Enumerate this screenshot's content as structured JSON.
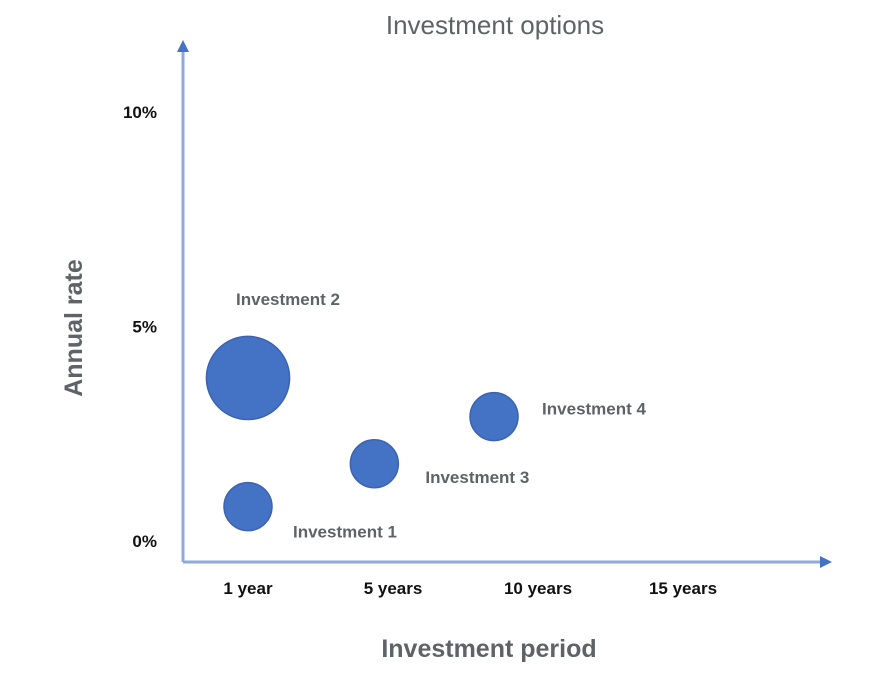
{
  "chart_data": {
    "type": "scatter",
    "title": "Investment options",
    "xlabel": "Investment period",
    "ylabel": "Annual rate",
    "x_categories": [
      "1 year",
      "5 years",
      "10 years",
      "15 years"
    ],
    "y_ticks": [
      "0%",
      "5%",
      "10%"
    ],
    "ylim": [
      0,
      10
    ],
    "grid": false,
    "colors": {
      "bubble": "#4472c4",
      "axis": "#4472c4"
    },
    "points": [
      {
        "label": "Investment 1",
        "x": 0,
        "y": 0.8,
        "size": 1
      },
      {
        "label": "Investment 2",
        "x": 0,
        "y": 3.8,
        "size": 3
      },
      {
        "label": "Investment 3",
        "x": 0.95,
        "y": 1.8,
        "size": 1
      },
      {
        "label": "Investment 4",
        "x": 1.85,
        "y": 2.9,
        "size": 1
      }
    ]
  }
}
